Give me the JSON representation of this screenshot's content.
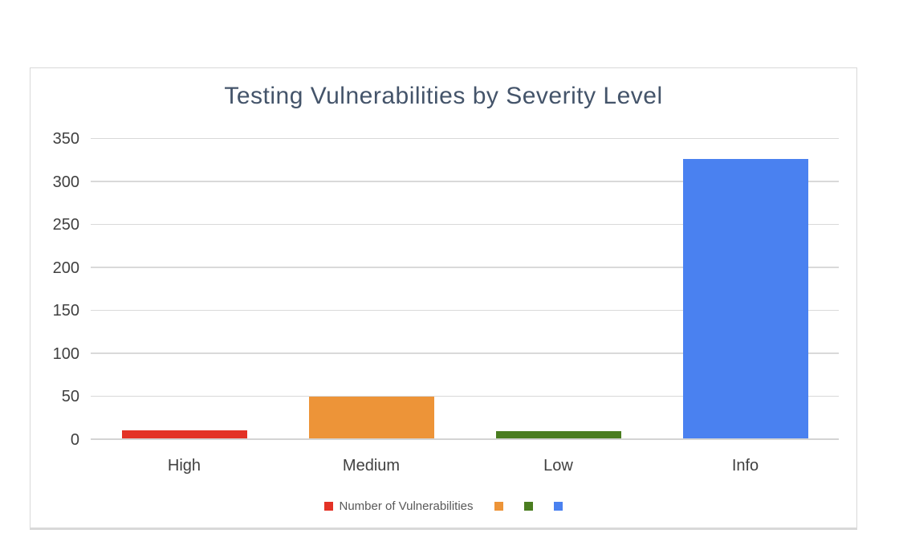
{
  "chart": {
    "title_color": "#44546A",
    "border_color": "#D9D9D9",
    "background": "#FFFFFF"
  },
  "chart_data": {
    "type": "bar",
    "title": "Testing Vulnerabilities by Severity Level",
    "categories": [
      "High",
      "Medium",
      "Low",
      "Info"
    ],
    "series": [
      {
        "name": "Number of Vulnerabilities",
        "values": [
          9,
          49,
          8,
          325
        ]
      }
    ],
    "point_colors": [
      "#E33226",
      "#ED9438",
      "#4A7D20",
      "#4A81F0"
    ],
    "xlabel": "",
    "ylabel": "",
    "ylim": [
      0,
      350
    ],
    "yticks": [
      0,
      50,
      100,
      150,
      200,
      250,
      300,
      350
    ],
    "grid": true,
    "gridline_color": "#D9D9D9",
    "axis_label_color": "#404040",
    "legend_position": "bottom",
    "legend_text_color": "#595959",
    "legend": [
      {
        "label": "Number of Vulnerabilities",
        "color": "#E33226"
      },
      {
        "label": "",
        "color": "#ED9438"
      },
      {
        "label": "",
        "color": "#4A7D20"
      },
      {
        "label": "",
        "color": "#4A81F0"
      }
    ]
  }
}
